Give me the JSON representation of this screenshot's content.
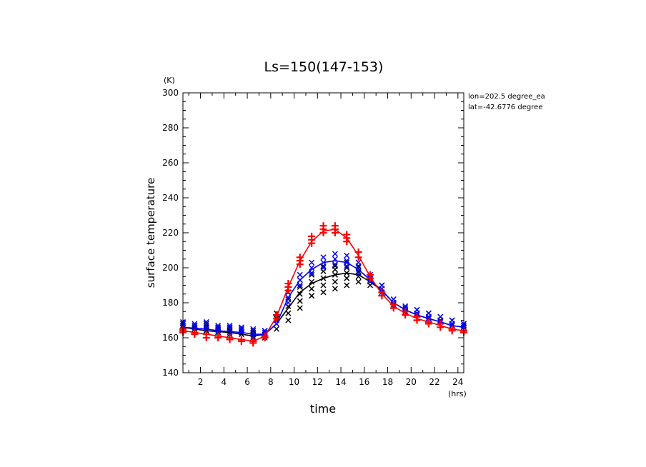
{
  "chart_data": {
    "type": "line",
    "title": "Ls=150(147-153)",
    "xlabel": "time",
    "ylabel": "surface temperature",
    "xunit": "(hrs)",
    "yunit": "(K)",
    "xlim": [
      0.5,
      24.5
    ],
    "ylim": [
      140,
      300
    ],
    "xticks": [
      2,
      4,
      6,
      8,
      10,
      12,
      14,
      16,
      18,
      20,
      22,
      24
    ],
    "yticks": [
      140,
      160,
      180,
      200,
      220,
      240,
      260,
      280,
      300
    ],
    "annotations": [
      "lon=202.5 degree_ea",
      "lat=-42.6776 degree"
    ],
    "grid": false,
    "x": [
      0.5,
      1.5,
      2.5,
      3.5,
      4.5,
      5.5,
      6.5,
      7.5,
      8.5,
      9.5,
      10.5,
      11.5,
      12.5,
      13.5,
      14.5,
      15.5,
      16.5,
      17.5,
      18.5,
      19.5,
      20.5,
      21.5,
      22.5,
      23.5,
      24.5
    ],
    "series": [
      {
        "color": "#000000",
        "marker": "x",
        "line": [
          166,
          165,
          164,
          163.5,
          163,
          162,
          161,
          162,
          168,
          177,
          186,
          191,
          194,
          196,
          197,
          196,
          192,
          187,
          180,
          176,
          173,
          171,
          169,
          167,
          166
        ],
        "scatter": [
          [
            166,
            167,
            168
          ],
          [
            165,
            166,
            167
          ],
          [
            164,
            166,
            168
          ],
          [
            163,
            164,
            166
          ],
          [
            162,
            164,
            166
          ],
          [
            162,
            163,
            165
          ],
          [
            160,
            162,
            164
          ],
          [
            160,
            162,
            164
          ],
          [
            165,
            168,
            171,
            174
          ],
          [
            170,
            174,
            178,
            182,
            186
          ],
          [
            177,
            181,
            185,
            189,
            193
          ],
          [
            184,
            188,
            192,
            196
          ],
          [
            186,
            190,
            194,
            198,
            201
          ],
          [
            188,
            192,
            196,
            199,
            201
          ],
          [
            190,
            194,
            197,
            200,
            203
          ],
          [
            192,
            195,
            198,
            201
          ],
          [
            190,
            193,
            196
          ],
          [
            186,
            188,
            190
          ],
          [
            178,
            180,
            182
          ],
          [
            175,
            177,
            178
          ],
          [
            173,
            174,
            176
          ],
          [
            171,
            172,
            174
          ],
          [
            169,
            170,
            172
          ],
          [
            167,
            168,
            170
          ],
          [
            166,
            167,
            168
          ]
        ]
      },
      {
        "color": "#0000ff",
        "marker": "x",
        "line": [
          166,
          165.5,
          165,
          164,
          163.5,
          163,
          162,
          162,
          168,
          183,
          193,
          199,
          203,
          204,
          203,
          199,
          193,
          187,
          180,
          176,
          173,
          171,
          169,
          167,
          166
        ],
        "scatter": [
          [
            166,
            168,
            169
          ],
          [
            166,
            167,
            168
          ],
          [
            165,
            167,
            169
          ],
          [
            164,
            165,
            167
          ],
          [
            163,
            165,
            167
          ],
          [
            163,
            164,
            166
          ],
          [
            161,
            163,
            165
          ],
          [
            161,
            163,
            164
          ],
          [
            168,
            170,
            172
          ],
          [
            180,
            183,
            186
          ],
          [
            190,
            193,
            196
          ],
          [
            197,
            200,
            203
          ],
          [
            200,
            203,
            206
          ],
          [
            202,
            205,
            208
          ],
          [
            201,
            204,
            207
          ],
          [
            197,
            200,
            203
          ],
          [
            192,
            194,
            196
          ],
          [
            186,
            188,
            190
          ],
          [
            179,
            180,
            182
          ],
          [
            176,
            177,
            178
          ],
          [
            173,
            174,
            176
          ],
          [
            171,
            172,
            174
          ],
          [
            169,
            170,
            172
          ],
          [
            167,
            168,
            170
          ],
          [
            166,
            167,
            168
          ]
        ]
      },
      {
        "color": "#ff0000",
        "marker": "+",
        "line": [
          164,
          163,
          162,
          161,
          160,
          159,
          158,
          161,
          172,
          189,
          204,
          215,
          221,
          222,
          217,
          207,
          195,
          185,
          178,
          174,
          171,
          169,
          167,
          165,
          164
        ],
        "scatter": [
          [
            163,
            164,
            165
          ],
          [
            162,
            163
          ],
          [
            160,
            162
          ],
          [
            160,
            161
          ],
          [
            159,
            160
          ],
          [
            158,
            159
          ],
          [
            157,
            158
          ],
          [
            160,
            161
          ],
          [
            171,
            173
          ],
          [
            187,
            189,
            191
          ],
          [
            202,
            204,
            206
          ],
          [
            214,
            216,
            218
          ],
          [
            220,
            222,
            224
          ],
          [
            220,
            222,
            224
          ],
          [
            215,
            217,
            219
          ],
          [
            206,
            209
          ],
          [
            194,
            196
          ],
          [
            184,
            186
          ],
          [
            177,
            179
          ],
          [
            173,
            175
          ],
          [
            170,
            172
          ],
          [
            168,
            169
          ],
          [
            166,
            168
          ],
          [
            164,
            165
          ],
          [
            163,
            164
          ]
        ]
      }
    ]
  }
}
